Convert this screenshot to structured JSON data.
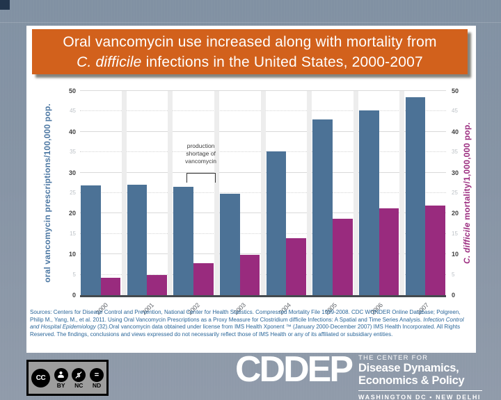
{
  "slide": {
    "title": {
      "line1": "Oral vancomycin use increased along with mortality from",
      "line2_italic": "C. difficile",
      "line2_rest": " infections in the United States, 2000-2007"
    }
  },
  "chart_data": {
    "type": "bar",
    "categories": [
      "2000",
      "2001",
      "2002",
      "2003",
      "2004",
      "2005",
      "2006",
      "2007"
    ],
    "series": [
      {
        "key": "prescriptions",
        "name": "oral vancomycin prescriptions/100,000 pop.",
        "color": "#4c7296",
        "values": [
          26.8,
          27.1,
          26.5,
          24.8,
          35.2,
          43.0,
          45.3,
          48.5
        ]
      },
      {
        "key": "mortality",
        "name": "C. difficile mortality/1,000,000 pop.",
        "color": "#992b7e",
        "values": [
          4.2,
          5.0,
          7.9,
          9.8,
          14.0,
          18.7,
          21.3,
          22.0
        ]
      }
    ],
    "ylim": [
      0,
      50
    ],
    "ticks_major": [
      0,
      10,
      20,
      30,
      40,
      50
    ],
    "ticks_minor": [
      5,
      15,
      25,
      35,
      45
    ],
    "left_axis_label": "oral vancomycin prescriptions/100,000 pop.",
    "right_axis_label_italic": "C. difficile",
    "right_axis_label_rest": " mortality/1,000,000 pop.",
    "annotation": {
      "line1": "production",
      "line2": "shortage of",
      "line3": "vancomycin"
    },
    "grid": "horizontal",
    "legend_position": "none"
  },
  "sources": {
    "part1": "Sources: Centers for Disease Control and Prevention, National Center for Health Statistics. Compressed Mortality File 1999-2008. CDC WONDER Online Database; Polgreen, Philip M., Yang, M., et al. 2011. Using Oral Vancomycin Prescriptions as a Proxy Measure for Clostridium difficile Infections: A Spatial and Time Series Analysis. ",
    "italic": "Infection Control and Hospital Epidemiology",
    "part2": " (32).Oral vancomycin data obtained under license from IMS Health Xponent ™ (January 2000-December 2007) IMS Health Incorporated. All Rights Reserved. The findings, conclusions and views expressed do not necessarily reflect those of IMS Health or any of its affiliated or subsidiary entities."
  },
  "footer": {
    "cc_badge": {
      "cc_label": "CC",
      "labels": [
        "BY",
        "NC",
        "ND"
      ],
      "nd_glyph": "=",
      "nc_glyph": "$"
    },
    "logo": {
      "acronym": "CDDEP",
      "line1": "THE CENTER FOR",
      "line2": "Disease Dynamics,",
      "line3": "Economics & Policy",
      "line4": "WASHINGTON DC • NEW DELHI"
    }
  },
  "colors": {
    "background": "#8794a5",
    "panel": "#ffffff",
    "banner": "#d2611c",
    "banner_text": "#ffffff",
    "bar_blue": "#4c7296",
    "bar_purple": "#992b7e",
    "axis_title_blue": "#4d78a3",
    "axis_title_purple": "#9c2e80",
    "sources_text": "#2a6699",
    "corner_square": "#22354c"
  }
}
